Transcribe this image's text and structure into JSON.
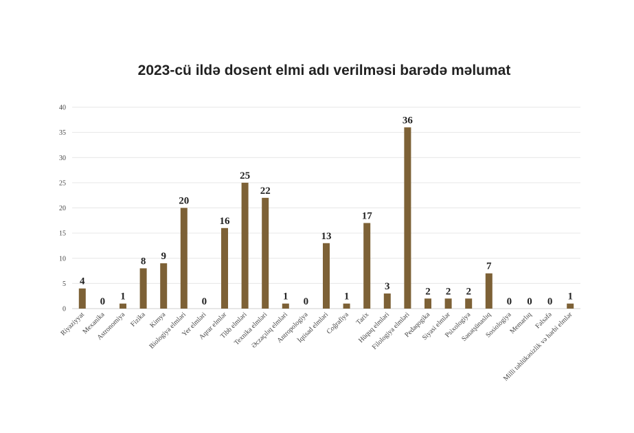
{
  "chart_data": {
    "type": "bar",
    "title": "2023-cü ildə dosent elmi adı verilməsi barədə məlumat",
    "xlabel": "",
    "ylabel": "",
    "ylim": [
      0,
      40
    ],
    "yticks": [
      0,
      5,
      10,
      15,
      20,
      25,
      30,
      35,
      40
    ],
    "grid": true,
    "legend": "none",
    "bar_color": "#7d6136",
    "categories": [
      "Riyaziyyat",
      "Mexanika",
      "Astronomiya",
      "Fizika",
      "Kimya",
      "Biologiya elmləri",
      "Yer elmləri",
      "Aqrar elmlər",
      "Tibb elmləri",
      "Texnika elmləri",
      "Əczaçılıq elmləri",
      "Antropologiya",
      "İqtisad elmləri",
      "Coğrafiya",
      "Tarix",
      "Hüquq elmləri",
      "Filologiya elmləri",
      "Pedaqogika",
      "Siyasi elmlər",
      "Psixologiya",
      "Sənətşünaslıq",
      "Sosiologiya",
      "Memarlıq",
      "Fəlsəfə",
      "Milli təhlükəsizlik və hərbi elmlər"
    ],
    "values": [
      4,
      0,
      1,
      8,
      9,
      20,
      0,
      16,
      25,
      22,
      1,
      0,
      13,
      1,
      17,
      3,
      36,
      2,
      2,
      2,
      7,
      0,
      0,
      0,
      1
    ]
  }
}
